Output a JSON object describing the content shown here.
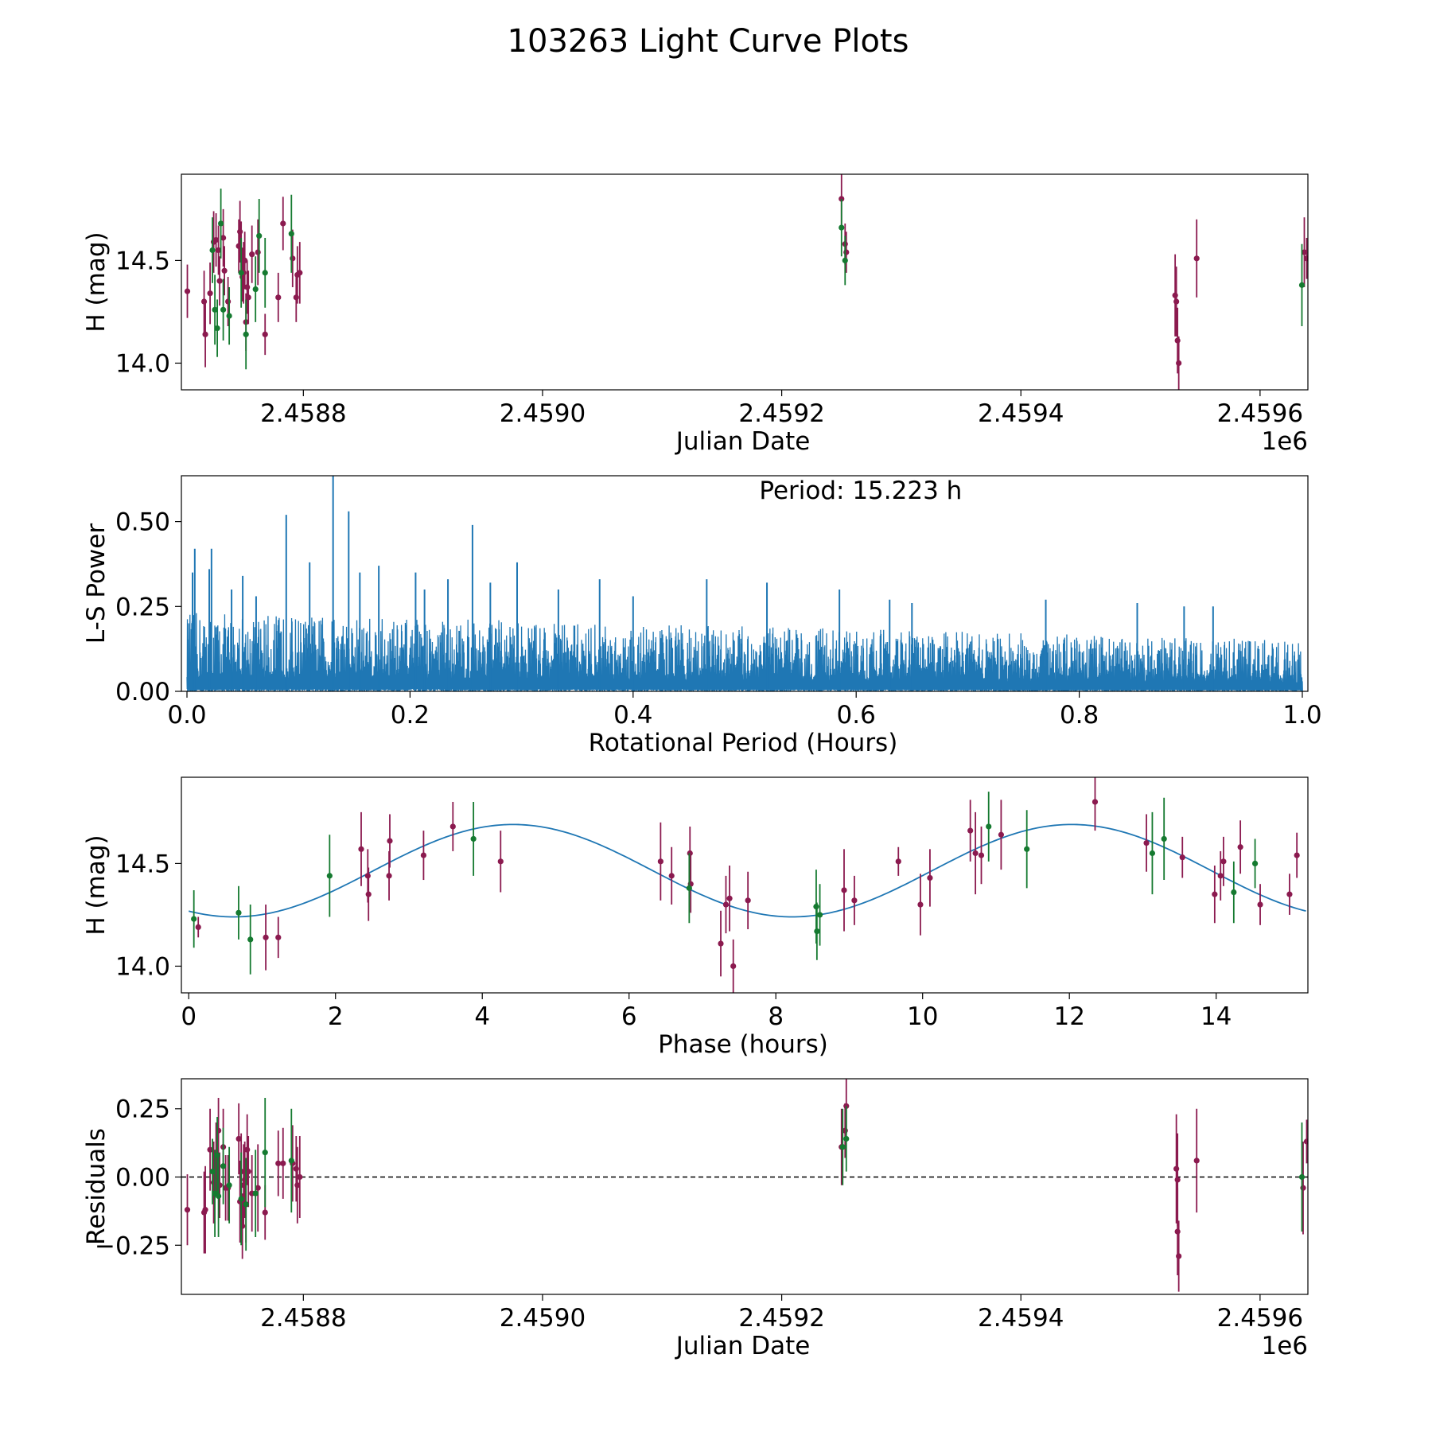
{
  "figure_title": "103263 Light Curve Plots",
  "colors": {
    "maroon": "#8b1a4f",
    "green": "#157a30",
    "line": "#1f77b4",
    "axis": "#000000"
  },
  "chart_data": [
    {
      "id": "lightcurve",
      "type": "scatter",
      "xlabel": "Julian Date",
      "ylabel": "H (mag)",
      "offset_text": "1e6",
      "xlim": [
        2458698,
        2459640
      ],
      "ylim": [
        13.87,
        14.92
      ],
      "xticks": [
        2458800,
        2459000,
        2459200,
        2459400,
        2459600
      ],
      "xtick_labels": [
        "2.4588",
        "2.4590",
        "2.4592",
        "2.4594",
        "2.4596"
      ],
      "yticks": [
        14.0,
        14.5
      ],
      "ytick_labels": [
        "14.0",
        "14.5"
      ],
      "series": [
        {
          "name": "maroon",
          "color": "maroon",
          "points": [
            [
              2458703,
              14.35,
              0.13
            ],
            [
              2458717,
              14.3,
              0.15
            ],
            [
              2458718,
              14.14,
              0.16
            ],
            [
              2458722,
              14.34,
              0.15
            ],
            [
              2458725,
              14.59,
              0.15
            ],
            [
              2458727,
              14.6,
              0.13
            ],
            [
              2458729,
              14.55,
              0.12
            ],
            [
              2458730,
              14.4,
              0.12
            ],
            [
              2458733,
              14.61,
              0.14
            ],
            [
              2458734,
              14.45,
              0.12
            ],
            [
              2458737,
              14.3,
              0.12
            ],
            [
              2458746,
              14.57,
              0.13
            ],
            [
              2458747,
              14.64,
              0.15
            ],
            [
              2458748,
              14.55,
              0.14
            ],
            [
              2458749,
              14.42,
              0.12
            ],
            [
              2458750,
              14.44,
              0.15
            ],
            [
              2458751,
              14.5,
              0.14
            ],
            [
              2458752,
              14.2,
              0.14
            ],
            [
              2458753,
              14.37,
              0.13
            ],
            [
              2458754,
              14.32,
              0.13
            ],
            [
              2458757,
              14.53,
              0.14
            ],
            [
              2458762,
              14.54,
              0.16
            ],
            [
              2458768,
              14.14,
              0.1
            ],
            [
              2458779,
              14.32,
              0.12
            ],
            [
              2458783,
              14.68,
              0.13
            ],
            [
              2458791,
              14.51,
              0.14
            ],
            [
              2458794,
              14.32,
              0.12
            ],
            [
              2458795,
              14.43,
              0.14
            ],
            [
              2458797,
              14.44,
              0.15
            ],
            [
              2459250,
              14.8,
              0.14
            ],
            [
              2459253,
              14.58,
              0.1
            ],
            [
              2459254,
              14.54,
              0.1
            ],
            [
              2459529,
              14.33,
              0.2
            ],
            [
              2459530,
              14.3,
              0.17
            ],
            [
              2459531,
              14.11,
              0.16
            ],
            [
              2459532,
              14.0,
              0.13
            ],
            [
              2459547,
              14.51,
              0.19
            ],
            [
              2459637,
              14.54,
              0.17
            ],
            [
              2459639,
              14.51,
              0.1
            ]
          ]
        },
        {
          "name": "green",
          "color": "green",
          "points": [
            [
              2458724,
              14.55,
              0.16
            ],
            [
              2458726,
              14.26,
              0.17
            ],
            [
              2458728,
              14.17,
              0.14
            ],
            [
              2458731,
              14.68,
              0.17
            ],
            [
              2458733,
              14.26,
              0.15
            ],
            [
              2458738,
              14.23,
              0.14
            ],
            [
              2458748,
              14.44,
              0.17
            ],
            [
              2458752,
              14.14,
              0.17
            ],
            [
              2458760,
              14.36,
              0.16
            ],
            [
              2458763,
              14.62,
              0.18
            ],
            [
              2458768,
              14.44,
              0.17
            ],
            [
              2458790,
              14.63,
              0.19
            ],
            [
              2459250,
              14.66,
              0.14
            ],
            [
              2459253,
              14.5,
              0.12
            ],
            [
              2459635,
              14.38,
              0.2
            ]
          ]
        }
      ]
    },
    {
      "id": "periodogram",
      "type": "line",
      "xlabel": "Rotational Period (Hours)",
      "ylabel": "L-S Power",
      "annotation": "Period: 15.223 h",
      "xlim": [
        -0.005,
        1.005
      ],
      "ylim": [
        0,
        0.635
      ],
      "xticks": [
        0.0,
        0.2,
        0.4,
        0.6,
        0.8,
        1.0
      ],
      "xtick_labels": [
        "0.0",
        "0.2",
        "0.4",
        "0.6",
        "0.8",
        "1.0"
      ],
      "yticks": [
        0.0,
        0.25,
        0.5
      ],
      "ytick_labels": [
        "0.00",
        "0.25",
        "0.50"
      ],
      "x_range": [
        0.0,
        1.0
      ],
      "base_level": 0.16,
      "peaks": [
        [
          0.005,
          0.35
        ],
        [
          0.007,
          0.42
        ],
        [
          0.02,
          0.36
        ],
        [
          0.022,
          0.42
        ],
        [
          0.04,
          0.3
        ],
        [
          0.05,
          0.34
        ],
        [
          0.062,
          0.28
        ],
        [
          0.089,
          0.52
        ],
        [
          0.11,
          0.38
        ],
        [
          0.131,
          0.65
        ],
        [
          0.145,
          0.53
        ],
        [
          0.155,
          0.35
        ],
        [
          0.172,
          0.37
        ],
        [
          0.205,
          0.35
        ],
        [
          0.213,
          0.3
        ],
        [
          0.234,
          0.33
        ],
        [
          0.256,
          0.49
        ],
        [
          0.272,
          0.32
        ],
        [
          0.296,
          0.38
        ],
        [
          0.333,
          0.3
        ],
        [
          0.37,
          0.33
        ],
        [
          0.4,
          0.28
        ],
        [
          0.466,
          0.33
        ],
        [
          0.52,
          0.32
        ],
        [
          0.585,
          0.3
        ],
        [
          0.63,
          0.27
        ],
        [
          0.65,
          0.26
        ],
        [
          0.77,
          0.27
        ],
        [
          0.852,
          0.26
        ],
        [
          0.894,
          0.25
        ],
        [
          0.92,
          0.25
        ]
      ]
    },
    {
      "id": "phased",
      "type": "scatter",
      "xlabel": "Phase (hours)",
      "ylabel": "H (mag)",
      "xlim": [
        -0.1,
        15.25
      ],
      "ylim": [
        13.87,
        14.92
      ],
      "xticks": [
        0,
        2,
        4,
        6,
        8,
        10,
        12,
        14
      ],
      "xtick_labels": [
        "0",
        "2",
        "4",
        "6",
        "8",
        "10",
        "12",
        "14"
      ],
      "yticks": [
        14.0,
        14.5
      ],
      "ytick_labels": [
        "14.0",
        "14.5"
      ],
      "model": {
        "mean": 14.465,
        "amplitude": 0.225,
        "period": 7.612,
        "peak_phase": 4.42,
        "x_range": [
          0.0,
          15.223
        ]
      },
      "series": [
        {
          "name": "maroon",
          "color": "maroon",
          "points": [
            [
              0.13,
              14.19,
              0.05
            ],
            [
              1.05,
              14.14,
              0.16
            ],
            [
              1.22,
              14.14,
              0.1
            ],
            [
              2.35,
              14.57,
              0.18
            ],
            [
              2.44,
              14.44,
              0.13
            ],
            [
              2.45,
              14.35,
              0.13
            ],
            [
              2.73,
              14.44,
              0.12
            ],
            [
              2.74,
              14.61,
              0.13
            ],
            [
              3.2,
              14.54,
              0.12
            ],
            [
              3.6,
              14.68,
              0.12
            ],
            [
              4.25,
              14.51,
              0.15
            ],
            [
              6.43,
              14.51,
              0.19
            ],
            [
              6.58,
              14.44,
              0.14
            ],
            [
              6.83,
              14.55,
              0.13
            ],
            [
              6.84,
              14.4,
              0.14
            ],
            [
              7.25,
              14.11,
              0.16
            ],
            [
              7.32,
              14.3,
              0.14
            ],
            [
              7.37,
              14.33,
              0.16
            ],
            [
              7.42,
              14.0,
              0.13
            ],
            [
              7.62,
              14.32,
              0.14
            ],
            [
              8.93,
              14.37,
              0.2
            ],
            [
              9.07,
              14.32,
              0.12
            ],
            [
              9.67,
              14.51,
              0.07
            ],
            [
              9.97,
              14.3,
              0.15
            ],
            [
              10.1,
              14.43,
              0.14
            ],
            [
              10.65,
              14.66,
              0.15
            ],
            [
              10.72,
              14.55,
              0.2
            ],
            [
              10.8,
              14.54,
              0.14
            ],
            [
              11.07,
              14.64,
              0.17
            ],
            [
              12.35,
              14.8,
              0.14
            ],
            [
              13.05,
              14.6,
              0.14
            ],
            [
              13.54,
              14.53,
              0.1
            ],
            [
              13.98,
              14.35,
              0.14
            ],
            [
              14.06,
              14.44,
              0.12
            ],
            [
              14.1,
              14.51,
              0.12
            ],
            [
              14.33,
              14.58,
              0.13
            ],
            [
              14.6,
              14.3,
              0.1
            ],
            [
              15.0,
              14.35,
              0.1
            ],
            [
              15.1,
              14.54,
              0.11
            ]
          ]
        },
        {
          "name": "green",
          "color": "green",
          "points": [
            [
              0.07,
              14.23,
              0.14
            ],
            [
              0.68,
              14.26,
              0.13
            ],
            [
              0.84,
              14.13,
              0.17
            ],
            [
              1.92,
              14.44,
              0.2
            ],
            [
              3.88,
              14.62,
              0.18
            ],
            [
              6.82,
              14.38,
              0.17
            ],
            [
              8.55,
              14.29,
              0.18
            ],
            [
              8.56,
              14.17,
              0.14
            ],
            [
              8.6,
              14.25,
              0.15
            ],
            [
              10.9,
              14.68,
              0.17
            ],
            [
              11.42,
              14.57,
              0.19
            ],
            [
              13.13,
              14.55,
              0.2
            ],
            [
              13.29,
              14.62,
              0.2
            ],
            [
              14.24,
              14.36,
              0.15
            ],
            [
              14.53,
              14.5,
              0.12
            ]
          ]
        }
      ]
    },
    {
      "id": "residuals",
      "type": "scatter",
      "xlabel": "Julian Date",
      "ylabel": "Residuals",
      "offset_text": "1e6",
      "xlim": [
        2458698,
        2459640
      ],
      "ylim": [
        -0.43,
        0.36
      ],
      "xticks": [
        2458800,
        2459000,
        2459200,
        2459400,
        2459600
      ],
      "xtick_labels": [
        "2.4588",
        "2.4590",
        "2.4592",
        "2.4594",
        "2.4596"
      ],
      "yticks": [
        -0.25,
        0.0,
        0.25
      ],
      "ytick_labels": [
        "−0.25",
        "0.00",
        "0.25"
      ],
      "reference_line": 0.0,
      "series": [
        {
          "name": "maroon",
          "color": "maroon",
          "points": [
            [
              2458703,
              -0.12,
              0.13
            ],
            [
              2458717,
              -0.13,
              0.15
            ],
            [
              2458718,
              -0.12,
              0.16
            ],
            [
              2458722,
              0.1,
              0.15
            ],
            [
              2458725,
              -0.02,
              0.15
            ],
            [
              2458727,
              0.07,
              0.13
            ],
            [
              2458729,
              0.17,
              0.12
            ],
            [
              2458730,
              -0.03,
              0.12
            ],
            [
              2458733,
              0.11,
              0.14
            ],
            [
              2458735,
              -0.04,
              0.12
            ],
            [
              2458737,
              -0.04,
              0.12
            ],
            [
              2458746,
              0.14,
              0.13
            ],
            [
              2458747,
              -0.09,
              0.15
            ],
            [
              2458748,
              0.02,
              0.14
            ],
            [
              2458749,
              -0.18,
              0.12
            ],
            [
              2458750,
              -0.03,
              0.15
            ],
            [
              2458751,
              -0.01,
              0.14
            ],
            [
              2458752,
              -0.1,
              0.14
            ],
            [
              2458753,
              0.1,
              0.13
            ],
            [
              2458754,
              0.02,
              0.13
            ],
            [
              2458757,
              -0.06,
              0.14
            ],
            [
              2458762,
              -0.04,
              0.16
            ],
            [
              2458768,
              -0.13,
              0.1
            ],
            [
              2458779,
              0.05,
              0.12
            ],
            [
              2458783,
              0.05,
              0.13
            ],
            [
              2458791,
              0.05,
              0.14
            ],
            [
              2458794,
              0.03,
              0.12
            ],
            [
              2458795,
              -0.03,
              0.14
            ],
            [
              2458797,
              0.0,
              0.15
            ],
            [
              2459250,
              0.11,
              0.14
            ],
            [
              2459253,
              0.17,
              0.1
            ],
            [
              2459254,
              0.26,
              0.1
            ],
            [
              2459530,
              0.03,
              0.2
            ],
            [
              2459531,
              -0.01,
              0.17
            ],
            [
              2459531,
              -0.2,
              0.16
            ],
            [
              2459532,
              -0.29,
              0.13
            ],
            [
              2459547,
              0.06,
              0.19
            ],
            [
              2459636,
              -0.04,
              0.17
            ],
            [
              2459639,
              0.13,
              0.08
            ]
          ]
        },
        {
          "name": "green",
          "color": "green",
          "points": [
            [
              2458724,
              0.02,
              0.12
            ],
            [
              2458726,
              -0.06,
              0.16
            ],
            [
              2458728,
              0.08,
              0.14
            ],
            [
              2458729,
              -0.07,
              0.15
            ],
            [
              2458733,
              0.04,
              0.14
            ],
            [
              2458738,
              -0.03,
              0.14
            ],
            [
              2458748,
              -0.08,
              0.17
            ],
            [
              2458752,
              -0.1,
              0.17
            ],
            [
              2458760,
              -0.06,
              0.16
            ],
            [
              2458768,
              0.09,
              0.2
            ],
            [
              2458790,
              0.06,
              0.19
            ],
            [
              2459251,
              0.11,
              0.14
            ],
            [
              2459254,
              0.14,
              0.12
            ],
            [
              2459635,
              0.0,
              0.2
            ]
          ]
        }
      ]
    }
  ]
}
